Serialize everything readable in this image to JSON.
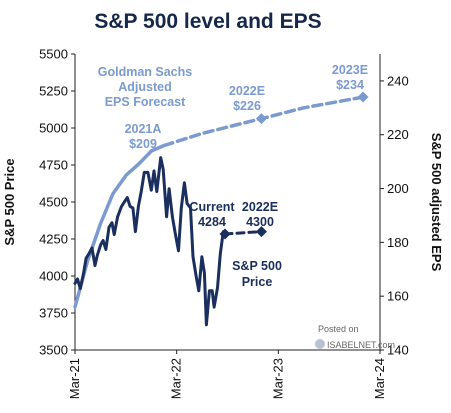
{
  "chart_data": {
    "type": "line",
    "title": "S&P 500 level and EPS",
    "ylabel_left": "S&P 500 Price",
    "ylabel_right": "S&P 500 adjusted EPS",
    "x_tick_labels": [
      "Mar-21",
      "Mar-22",
      "Mar-23",
      "Mar-24"
    ],
    "y_left_ticks": [
      "3500",
      "3750",
      "4000",
      "4250",
      "4500",
      "4750",
      "5000",
      "5250",
      "5500"
    ],
    "y_left_lim": [
      3500,
      5500
    ],
    "y_right_ticks": [
      "140",
      "160",
      "180",
      "200",
      "220",
      "240"
    ],
    "y_right_lim": [
      140,
      250
    ],
    "grid": false,
    "colors": {
      "price": "#1a2f5e",
      "eps": "#7b9ad0",
      "title": "#16284a"
    },
    "series": [
      {
        "name": "S&P 500 Price",
        "axis": "left",
        "style": "solid",
        "points": [
          [
            "2021-03-01",
            3950
          ],
          [
            "2021-03-10",
            3980
          ],
          [
            "2021-03-20",
            3915
          ],
          [
            "2021-04-01",
            4020
          ],
          [
            "2021-04-10",
            4120
          ],
          [
            "2021-04-20",
            4150
          ],
          [
            "2021-05-01",
            4190
          ],
          [
            "2021-05-12",
            4070
          ],
          [
            "2021-05-20",
            4140
          ],
          [
            "2021-06-01",
            4210
          ],
          [
            "2021-06-10",
            4240
          ],
          [
            "2021-06-20",
            4180
          ],
          [
            "2021-07-01",
            4330
          ],
          [
            "2021-07-12",
            4360
          ],
          [
            "2021-07-20",
            4280
          ],
          [
            "2021-08-01",
            4400
          ],
          [
            "2021-08-15",
            4470
          ],
          [
            "2021-08-25",
            4500
          ],
          [
            "2021-09-05",
            4530
          ],
          [
            "2021-09-15",
            4470
          ],
          [
            "2021-09-25",
            4460
          ],
          [
            "2021-10-04",
            4300
          ],
          [
            "2021-10-15",
            4470
          ],
          [
            "2021-10-25",
            4570
          ],
          [
            "2021-11-05",
            4700
          ],
          [
            "2021-11-18",
            4700
          ],
          [
            "2021-11-30",
            4580
          ],
          [
            "2021-12-10",
            4710
          ],
          [
            "2021-12-20",
            4570
          ],
          [
            "2022-01-03",
            4800
          ],
          [
            "2022-01-12",
            4720
          ],
          [
            "2022-01-24",
            4400
          ],
          [
            "2022-02-02",
            4590
          ],
          [
            "2022-02-14",
            4400
          ],
          [
            "2022-02-24",
            4290
          ],
          [
            "2022-03-08",
            4170
          ],
          [
            "2022-03-18",
            4460
          ],
          [
            "2022-03-29",
            4630
          ],
          [
            "2022-04-08",
            4490
          ],
          [
            "2022-04-20",
            4460
          ],
          [
            "2022-04-29",
            4130
          ],
          [
            "2022-05-10",
            4000
          ],
          [
            "2022-05-20",
            3900
          ],
          [
            "2022-05-31",
            4130
          ],
          [
            "2022-06-09",
            4020
          ],
          [
            "2022-06-16",
            3670
          ],
          [
            "2022-06-27",
            3900
          ],
          [
            "2022-07-07",
            3900
          ],
          [
            "2022-07-14",
            3790
          ],
          [
            "2022-07-26",
            3920
          ],
          [
            "2022-08-05",
            4150
          ],
          [
            "2022-08-16",
            4300
          ],
          [
            "2022-08-22",
            4284
          ]
        ]
      },
      {
        "name": "S&P 500 Price projection",
        "axis": "left",
        "style": "dashed",
        "points": [
          [
            "2022-08-22",
            4284
          ],
          [
            "2022-12-31",
            4300
          ]
        ]
      },
      {
        "name": "EPS",
        "axis": "right",
        "style": "solid",
        "points": [
          [
            "2021-03-01",
            156
          ],
          [
            "2021-04-15",
            173
          ],
          [
            "2021-06-01",
            187
          ],
          [
            "2021-07-15",
            198
          ],
          [
            "2021-09-01",
            205
          ],
          [
            "2021-10-15",
            209
          ],
          [
            "2021-12-01",
            214
          ],
          [
            "2022-01-15",
            216
          ]
        ]
      },
      {
        "name": "Goldman Sachs Adjusted EPS Forecast",
        "axis": "right",
        "style": "dashed",
        "points": [
          [
            "2022-01-15",
            216
          ],
          [
            "2022-06-01",
            220.5
          ],
          [
            "2022-12-31",
            226
          ],
          [
            "2023-06-01",
            230
          ],
          [
            "2023-12-31",
            234
          ]
        ]
      }
    ],
    "markers": [
      {
        "x": "2022-12-31",
        "axis": "right",
        "y": 226,
        "color": "#7b9ad0"
      },
      {
        "x": "2023-12-31",
        "axis": "right",
        "y": 234,
        "color": "#7b9ad0"
      },
      {
        "x": "2022-08-22",
        "axis": "left",
        "y": 4284,
        "color": "#1a2f5e"
      },
      {
        "x": "2022-12-31",
        "axis": "left",
        "y": 4300,
        "color": "#1a2f5e"
      }
    ],
    "annotations": {
      "forecast": [
        "Goldman Sachs",
        "Adjusted",
        "EPS Forecast"
      ],
      "eps_2021a": [
        "2021A",
        "$209"
      ],
      "eps_2022e": [
        "2022E",
        "$226"
      ],
      "eps_2023e": [
        "2023E",
        "$234"
      ],
      "price_current": [
        "Current",
        "4284"
      ],
      "price_2022e": [
        "2022E",
        "4300"
      ],
      "price_label": [
        "S&P 500",
        "Price"
      ]
    }
  },
  "watermark": {
    "line1": "Posted on",
    "line2": "ISABELNET.com"
  }
}
